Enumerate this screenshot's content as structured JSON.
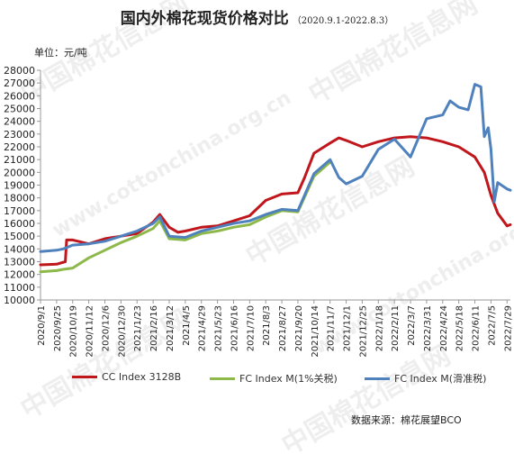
{
  "header": {
    "title": "国内外棉花现货价格对比",
    "subtitle": "（2020.9.1-2022.8.3）",
    "unit_label": "单位：元/吨"
  },
  "source_label": "数据来源：棉花展望BCO",
  "watermark": {
    "cn": "中国棉花信息网",
    "url": "www.cottonchina.org.cn"
  },
  "colors": {
    "cc_index": "#c0171d",
    "fc_1pct": "#8db84a",
    "fc_sliding": "#4f81bd"
  },
  "chart_data": {
    "type": "line",
    "title": "国内外棉花现货价格对比",
    "ylabel": "元/吨",
    "ylim": [
      10000,
      28000
    ],
    "yticks": [
      10000,
      11000,
      12000,
      13000,
      14000,
      15000,
      16000,
      17000,
      18000,
      19000,
      20000,
      21000,
      22000,
      23000,
      24000,
      25000,
      26000,
      27000,
      28000
    ],
    "x_dates": [
      "2020/9/1",
      "2020/9/25",
      "2020/10/19",
      "2020/11/12",
      "2020/12/6",
      "2020/12/30",
      "2021/1/23",
      "2021/2/16",
      "2021/3/12",
      "2021/4/5",
      "2021/4/29",
      "2021/5/23",
      "2021/6/16",
      "2021/7/10",
      "2021/8/3",
      "2021/8/27",
      "2021/9/20",
      "2021/10/14",
      "2021/11/7",
      "2021/12/1",
      "2021/12/25",
      "2022/1/18",
      "2022/2/11",
      "2022/3/7",
      "2022/3/31",
      "2022/4/24",
      "2022/5/18",
      "2022/6/11",
      "2022/7/5",
      "2022/7/29"
    ],
    "grid": false,
    "legend_position": "bottom",
    "series": [
      {
        "name": "CC Index 3128B",
        "color": "#c0171d",
        "points": [
          [
            "2020/9/1",
            12750
          ],
          [
            "2020/9/25",
            12800
          ],
          [
            "2020/10/8",
            13000
          ],
          [
            "2020/10/10",
            14700
          ],
          [
            "2020/10/19",
            14700
          ],
          [
            "2020/11/12",
            14400
          ],
          [
            "2020/12/6",
            14800
          ],
          [
            "2020/12/30",
            15000
          ],
          [
            "2021/1/23",
            15200
          ],
          [
            "2021/2/16",
            16100
          ],
          [
            "2021/2/26",
            16700
          ],
          [
            "2021/3/12",
            15700
          ],
          [
            "2021/3/25",
            15300
          ],
          [
            "2021/4/5",
            15400
          ],
          [
            "2021/4/29",
            15700
          ],
          [
            "2021/5/23",
            15800
          ],
          [
            "2021/6/16",
            16200
          ],
          [
            "2021/7/10",
            16600
          ],
          [
            "2021/8/3",
            17800
          ],
          [
            "2021/8/27",
            18300
          ],
          [
            "2021/9/20",
            18400
          ],
          [
            "2021/9/30",
            19600
          ],
          [
            "2021/10/14",
            21500
          ],
          [
            "2021/11/7",
            22300
          ],
          [
            "2021/11/20",
            22700
          ],
          [
            "2021/12/1",
            22500
          ],
          [
            "2021/12/25",
            22000
          ],
          [
            "2022/1/18",
            22400
          ],
          [
            "2022/2/11",
            22700
          ],
          [
            "2022/3/7",
            22800
          ],
          [
            "2022/3/31",
            22700
          ],
          [
            "2022/4/24",
            22400
          ],
          [
            "2022/5/18",
            22000
          ],
          [
            "2022/6/11",
            21200
          ],
          [
            "2022/6/25",
            20000
          ],
          [
            "2022/7/5",
            18200
          ],
          [
            "2022/7/15",
            16800
          ],
          [
            "2022/7/29",
            15800
          ],
          [
            "2022/8/3",
            15900
          ]
        ]
      },
      {
        "name": "FC Index M(1%关税)",
        "color": "#8db84a",
        "points": [
          [
            "2020/9/1",
            12200
          ],
          [
            "2020/9/25",
            12300
          ],
          [
            "2020/10/5",
            12400
          ],
          [
            "2020/10/19",
            12500
          ],
          [
            "2020/11/12",
            13300
          ],
          [
            "2020/12/6",
            13900
          ],
          [
            "2020/12/30",
            14500
          ],
          [
            "2021/1/23",
            15000
          ],
          [
            "2021/2/16",
            15600
          ],
          [
            "2021/2/26",
            16200
          ],
          [
            "2021/3/12",
            14800
          ],
          [
            "2021/4/5",
            14700
          ],
          [
            "2021/4/29",
            15200
          ],
          [
            "2021/5/23",
            15400
          ],
          [
            "2021/6/16",
            15700
          ],
          [
            "2021/7/10",
            15900
          ],
          [
            "2021/8/3",
            16500
          ],
          [
            "2021/8/27",
            17000
          ],
          [
            "2021/9/20",
            16900
          ],
          [
            "2021/10/14",
            19700
          ],
          [
            "2021/11/7",
            20800
          ]
        ]
      },
      {
        "name": "FC Index M(滑准税)",
        "color": "#4f81bd",
        "points": [
          [
            "2020/9/1",
            13800
          ],
          [
            "2020/9/25",
            13900
          ],
          [
            "2020/10/5",
            14000
          ],
          [
            "2020/10/19",
            14300
          ],
          [
            "2020/11/12",
            14400
          ],
          [
            "2020/12/6",
            14600
          ],
          [
            "2020/12/30",
            15000
          ],
          [
            "2021/1/23",
            15400
          ],
          [
            "2021/2/16",
            16000
          ],
          [
            "2021/2/26",
            16500
          ],
          [
            "2021/3/12",
            15000
          ],
          [
            "2021/4/5",
            14900
          ],
          [
            "2021/4/29",
            15400
          ],
          [
            "2021/5/23",
            15700
          ],
          [
            "2021/6/16",
            16000
          ],
          [
            "2021/7/10",
            16200
          ],
          [
            "2021/8/3",
            16700
          ],
          [
            "2021/8/27",
            17100
          ],
          [
            "2021/9/20",
            17000
          ],
          [
            "2021/10/14",
            19900
          ],
          [
            "2021/11/7",
            21000
          ],
          [
            "2021/11/20",
            19600
          ],
          [
            "2021/12/1",
            19100
          ],
          [
            "2021/12/25",
            19700
          ],
          [
            "2022/1/18",
            21800
          ],
          [
            "2022/2/11",
            22600
          ],
          [
            "2022/3/7",
            21200
          ],
          [
            "2022/3/31",
            24200
          ],
          [
            "2022/4/24",
            24500
          ],
          [
            "2022/5/5",
            25600
          ],
          [
            "2022/5/18",
            25100
          ],
          [
            "2022/6/1",
            24900
          ],
          [
            "2022/6/11",
            26900
          ],
          [
            "2022/6/20",
            26700
          ],
          [
            "2022/6/25",
            22800
          ],
          [
            "2022/7/1",
            23500
          ],
          [
            "2022/7/5",
            21800
          ],
          [
            "2022/7/10",
            17700
          ],
          [
            "2022/7/15",
            19200
          ],
          [
            "2022/7/29",
            18700
          ],
          [
            "2022/8/3",
            18600
          ]
        ]
      }
    ]
  }
}
